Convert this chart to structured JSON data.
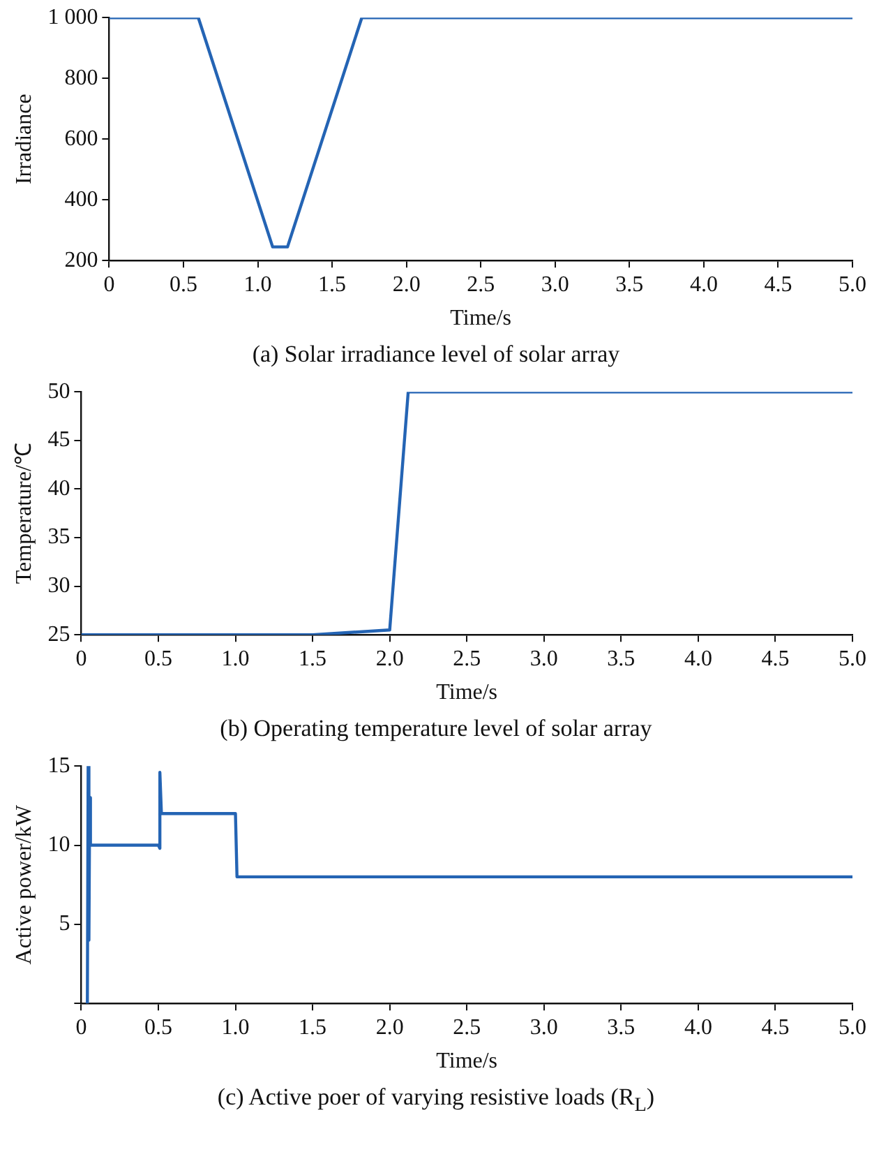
{
  "chart_data": [
    {
      "type": "line",
      "title": "(a) Solar irradiance level of solar array",
      "xlabel": "Time/s",
      "ylabel": "Irradiance",
      "grid": false,
      "legend": false,
      "marker": "none",
      "line_style": "solid",
      "xlim": [
        0,
        5
      ],
      "xticks": [
        {
          "value": 0,
          "label": "0"
        },
        {
          "value": 0.5,
          "label": "0.5"
        },
        {
          "value": 1,
          "label": "1.0"
        },
        {
          "value": 1.5,
          "label": "1.5"
        },
        {
          "value": 2,
          "label": "2.0"
        },
        {
          "value": 2.5,
          "label": "2.5"
        },
        {
          "value": 3,
          "label": "3.0"
        },
        {
          "value": 3.5,
          "label": "3.5"
        },
        {
          "value": 4,
          "label": "4.0"
        },
        {
          "value": 4.5,
          "label": "4.5"
        },
        {
          "value": 5,
          "label": "5.0"
        }
      ],
      "ylim": [
        200,
        1000
      ],
      "yticks": [
        200,
        400,
        600,
        800,
        {
          "value": 1000,
          "label": "1 000"
        }
      ],
      "series": [
        {
          "color": "#2464b4",
          "x": [
            0,
            0.6,
            1.1,
            1.2,
            1.7,
            5
          ],
          "values": [
            1000,
            1000,
            245,
            245,
            1000,
            1000
          ]
        }
      ]
    },
    {
      "type": "line",
      "title": "(b) Operating temperature level of solar array",
      "xlabel": "Time/s",
      "ylabel": "Temperature/℃",
      "grid": false,
      "legend": false,
      "marker": "none",
      "line_style": "solid",
      "xlim": [
        0,
        5
      ],
      "xticks": [
        {
          "value": 0,
          "label": "0"
        },
        {
          "value": 0.5,
          "label": "0.5"
        },
        {
          "value": 1,
          "label": "1.0"
        },
        {
          "value": 1.5,
          "label": "1.5"
        },
        {
          "value": 2,
          "label": "2.0"
        },
        {
          "value": 2.5,
          "label": "2.5"
        },
        {
          "value": 3,
          "label": "3.0"
        },
        {
          "value": 3.5,
          "label": "3.5"
        },
        {
          "value": 4,
          "label": "4.0"
        },
        {
          "value": 4.5,
          "label": "4.5"
        },
        {
          "value": 5,
          "label": "5.0"
        }
      ],
      "ylim": [
        25,
        50
      ],
      "yticks": [
        25,
        30,
        35,
        40,
        45,
        50
      ],
      "series": [
        {
          "color": "#2464b4",
          "x": [
            0,
            1.5,
            2.0,
            2.12,
            5
          ],
          "values": [
            25,
            25,
            25.5,
            50,
            50
          ]
        }
      ]
    },
    {
      "type": "line",
      "title": "(c) Active poer of varying resistive loads (R$_{L}$)",
      "xlabel": "Time/s",
      "ylabel": "Active power/kW",
      "grid": false,
      "legend": false,
      "marker": "none",
      "line_style": "solid",
      "xlim": [
        0,
        5
      ],
      "xticks": [
        {
          "value": 0,
          "label": "0"
        },
        {
          "value": 0.5,
          "label": "0.5"
        },
        {
          "value": 1,
          "label": "1.0"
        },
        {
          "value": 1.5,
          "label": "1.5"
        },
        {
          "value": 2,
          "label": "2.0"
        },
        {
          "value": 2.5,
          "label": "2.5"
        },
        {
          "value": 3,
          "label": "3.0"
        },
        {
          "value": 3.5,
          "label": "3.5"
        },
        {
          "value": 4,
          "label": "4.0"
        },
        {
          "value": 4.5,
          "label": "4.5"
        },
        {
          "value": 5,
          "label": "5.0"
        }
      ],
      "ylim": [
        0,
        15
      ],
      "yticks": [
        {
          "value": 0,
          "label": null
        },
        5,
        10,
        15
      ],
      "series": [
        {
          "color": "#2464b4",
          "x": [
            0.04,
            0.045,
            0.05,
            0.055,
            0.06,
            0.5,
            0.51,
            0.51,
            0.52,
            1.0,
            1.01,
            5
          ],
          "values": [
            0,
            15,
            4,
            13,
            10,
            10,
            9.8,
            14.6,
            12,
            12,
            8,
            8
          ]
        }
      ]
    }
  ]
}
